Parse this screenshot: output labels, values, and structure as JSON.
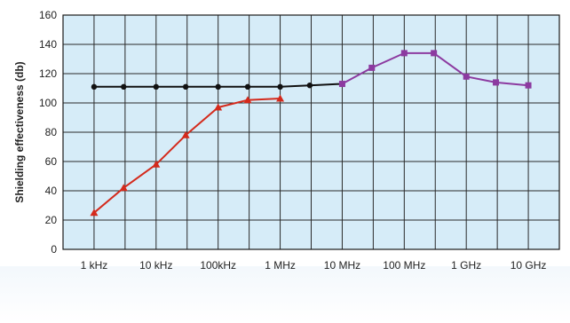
{
  "chart_data": {
    "type": "line",
    "title": "",
    "xlabel": "",
    "ylabel": "Shielding effectiveness (db)",
    "xscale": "log",
    "ylim": [
      0,
      160
    ],
    "yticks": [
      0,
      20,
      40,
      60,
      80,
      100,
      120,
      140,
      160
    ],
    "x_ticks": [
      {
        "hz": 1000,
        "label": "1 kHz"
      },
      {
        "hz": 10000,
        "label": "10 kHz"
      },
      {
        "hz": 100000,
        "label": "100kHz"
      },
      {
        "hz": 1000000,
        "label": "1 MHz"
      },
      {
        "hz": 10000000,
        "label": "10 MHz"
      },
      {
        "hz": 100000000,
        "label": "100 MHz"
      },
      {
        "hz": 1000000000,
        "label": "1 GHz"
      },
      {
        "hz": 10000000000,
        "label": "10 GHz"
      }
    ],
    "grid": true,
    "legend": "none",
    "plot_background": "#d6ecf8",
    "grid_color": "#2a2a2a",
    "series": [
      {
        "color": "#d42a1c",
        "marker": "triangle",
        "x": [
          1000,
          3000,
          10000,
          30000,
          100000,
          300000,
          1000000
        ],
        "y": [
          25,
          42,
          58,
          78,
          97,
          102,
          103
        ]
      },
      {
        "color": "#111111",
        "marker": "circle",
        "x": [
          1000,
          3000,
          10000,
          30000,
          100000,
          300000,
          1000000,
          3000000,
          10000000
        ],
        "y": [
          111,
          111,
          111,
          111,
          111,
          111,
          111,
          112,
          113
        ]
      },
      {
        "color": "#8c3aa0",
        "marker": "square",
        "x": [
          10000000,
          30000000,
          100000000,
          300000000,
          1000000000,
          3000000000,
          10000000000
        ],
        "y": [
          113,
          124,
          134,
          134,
          118,
          114,
          112
        ]
      }
    ]
  }
}
